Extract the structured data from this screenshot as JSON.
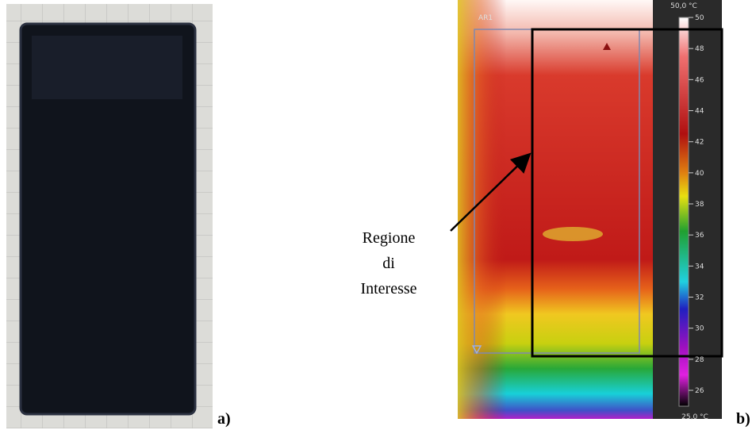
{
  "panels": {
    "a": {
      "label": "a)"
    },
    "b": {
      "label": "b)",
      "roi_tag": "AR1",
      "scale": {
        "top": "50,0 °C",
        "bottom": "25,0 °C",
        "ticks": [
          "50",
          "48",
          "46",
          "44",
          "42",
          "40",
          "38",
          "36",
          "34",
          "32",
          "30",
          "28",
          "26"
        ]
      }
    }
  },
  "annotation": {
    "lines": [
      "Regione",
      "di",
      "Interesse"
    ]
  }
}
